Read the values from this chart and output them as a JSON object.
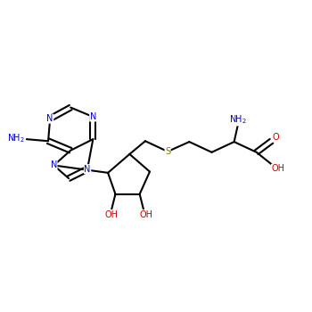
{
  "background_color": "#ffffff",
  "bond_color": "#000000",
  "nitrogen_color": "#0000cc",
  "oxygen_color": "#cc0000",
  "sulfur_color": "#808000",
  "line_width": 1.5,
  "fig_width": 3.5,
  "fig_height": 3.5,
  "dpi": 100,
  "xlim": [
    0.3,
    8.5
  ],
  "ylim": [
    3.2,
    7.8
  ]
}
